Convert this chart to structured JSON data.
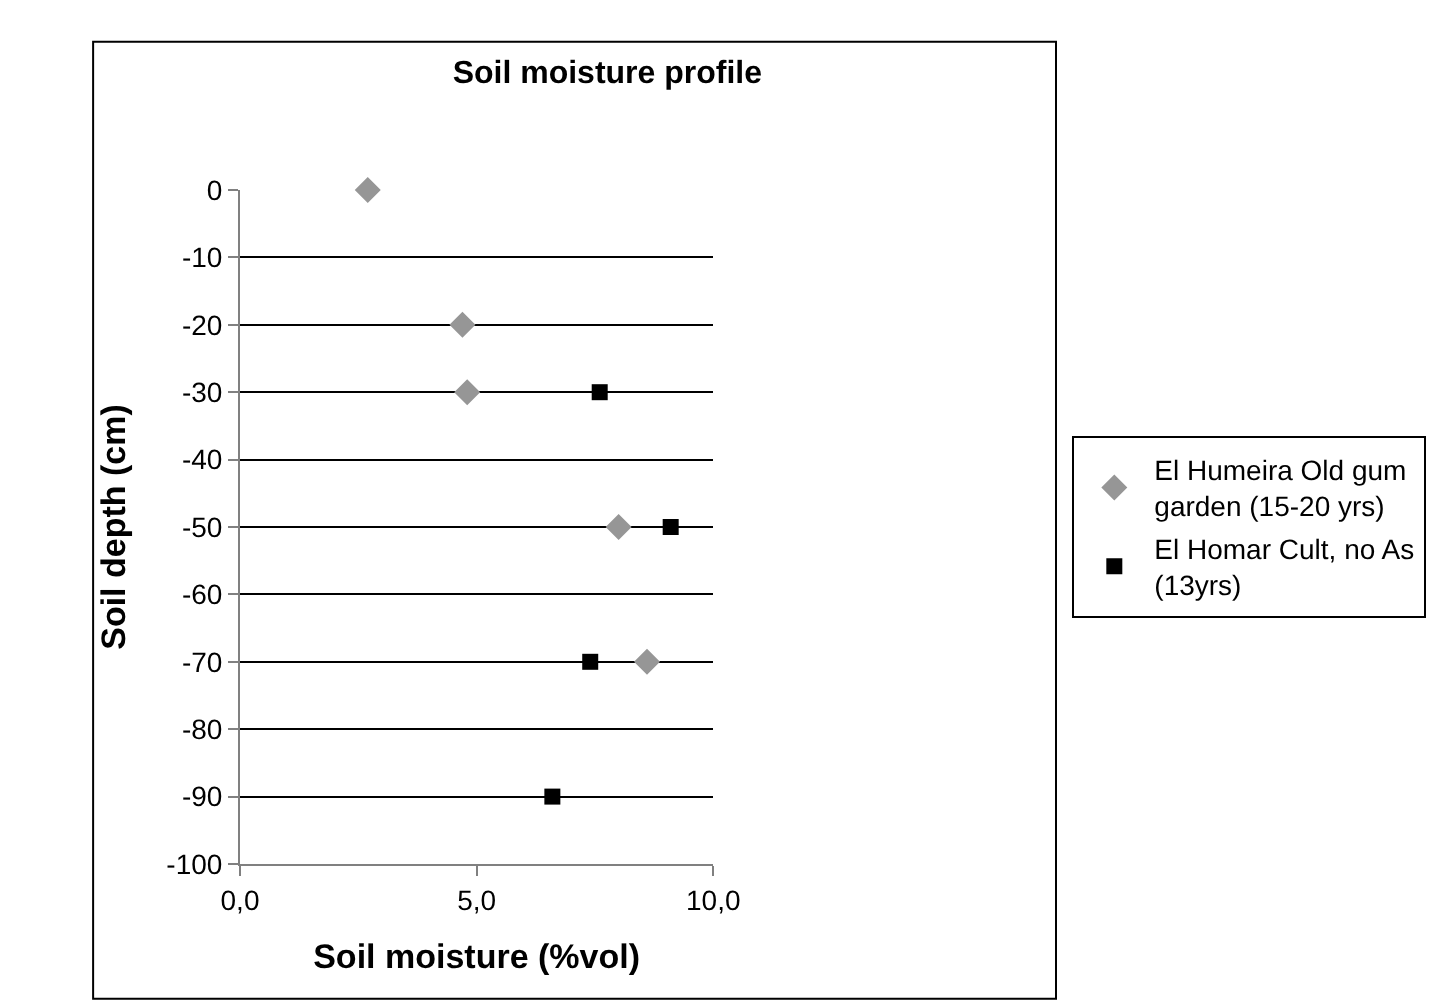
{
  "chart_data": {
    "type": "scatter",
    "title": "Soil moisture profile",
    "xlabel": "Soil moisture (%vol)",
    "ylabel": "Soil depth (cm)",
    "xlim": [
      0,
      10
    ],
    "xticks": [
      {
        "value": 0,
        "label": "0,0"
      },
      {
        "value": 5,
        "label": "5,0"
      },
      {
        "value": 10,
        "label": "10,0"
      }
    ],
    "ylim": [
      -100,
      0
    ],
    "yticks": [
      0,
      -10,
      -20,
      -30,
      -40,
      -50,
      -60,
      -70,
      -80,
      -90,
      -100
    ],
    "grid": "y",
    "legend": "right",
    "series": [
      {
        "name": "El Humeira Old gum garden (15-20 yrs)",
        "color": "#969696",
        "marker": "diamond",
        "x": [
          2.7,
          4.7,
          4.8,
          8.0,
          8.6
        ],
        "values": [
          0,
          -20,
          -30,
          -50,
          -70
        ]
      },
      {
        "name": "El Homar Cult, no As (13yrs)",
        "color": "#000000",
        "marker": "square",
        "x": [
          7.6,
          9.1,
          7.4,
          6.6
        ],
        "values": [
          -30,
          -50,
          -70,
          -90
        ]
      }
    ]
  }
}
